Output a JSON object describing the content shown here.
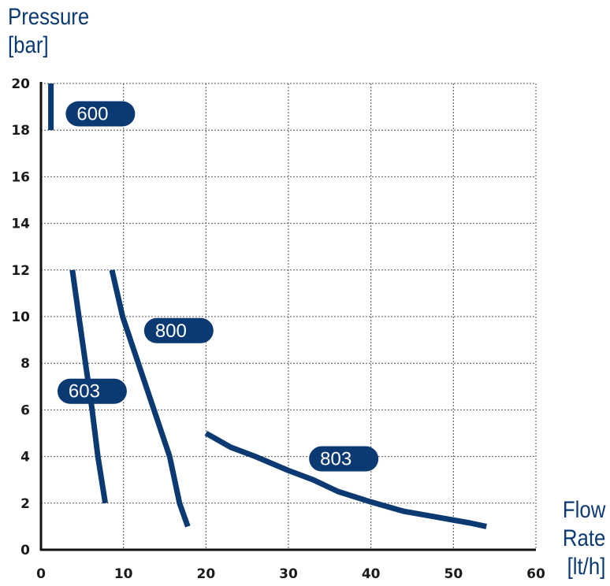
{
  "chart_data": {
    "type": "line",
    "ylabel": [
      "Pressure",
      "[bar]"
    ],
    "xlabel": [
      "Flow",
      "Rate",
      "[lt/h]"
    ],
    "xlim": [
      0,
      60
    ],
    "ylim": [
      0,
      20
    ],
    "xticks": [
      "0",
      "10",
      "20",
      "30",
      "40",
      "50",
      "60"
    ],
    "yticks": [
      "0",
      "2",
      "4",
      "6",
      "8",
      "10",
      "12",
      "14",
      "16",
      "18",
      "20"
    ],
    "grid": true,
    "line_color": "#0b3a73",
    "series": [
      {
        "name": "600",
        "points": [
          [
            1.2,
            20
          ],
          [
            1.2,
            18
          ]
        ]
      },
      {
        "name": "603",
        "points": [
          [
            3.8,
            12
          ],
          [
            4.6,
            10
          ],
          [
            5.4,
            8
          ],
          [
            6.2,
            6
          ],
          [
            6.9,
            4
          ],
          [
            7.8,
            2
          ]
        ]
      },
      {
        "name": "800",
        "points": [
          [
            8.6,
            12
          ],
          [
            9.9,
            10
          ],
          [
            11.8,
            8
          ],
          [
            13.7,
            6
          ],
          [
            15.6,
            4
          ],
          [
            16.8,
            2
          ],
          [
            17.8,
            1
          ]
        ]
      },
      {
        "name": "803",
        "points": [
          [
            20,
            5
          ],
          [
            21,
            4.8
          ],
          [
            23,
            4.4
          ],
          [
            26,
            4
          ],
          [
            30,
            3.4
          ],
          [
            33,
            3
          ],
          [
            36,
            2.5
          ],
          [
            40,
            2.05
          ],
          [
            44,
            1.65
          ],
          [
            48,
            1.4
          ],
          [
            52,
            1.15
          ],
          [
            54,
            1
          ]
        ]
      }
    ]
  }
}
